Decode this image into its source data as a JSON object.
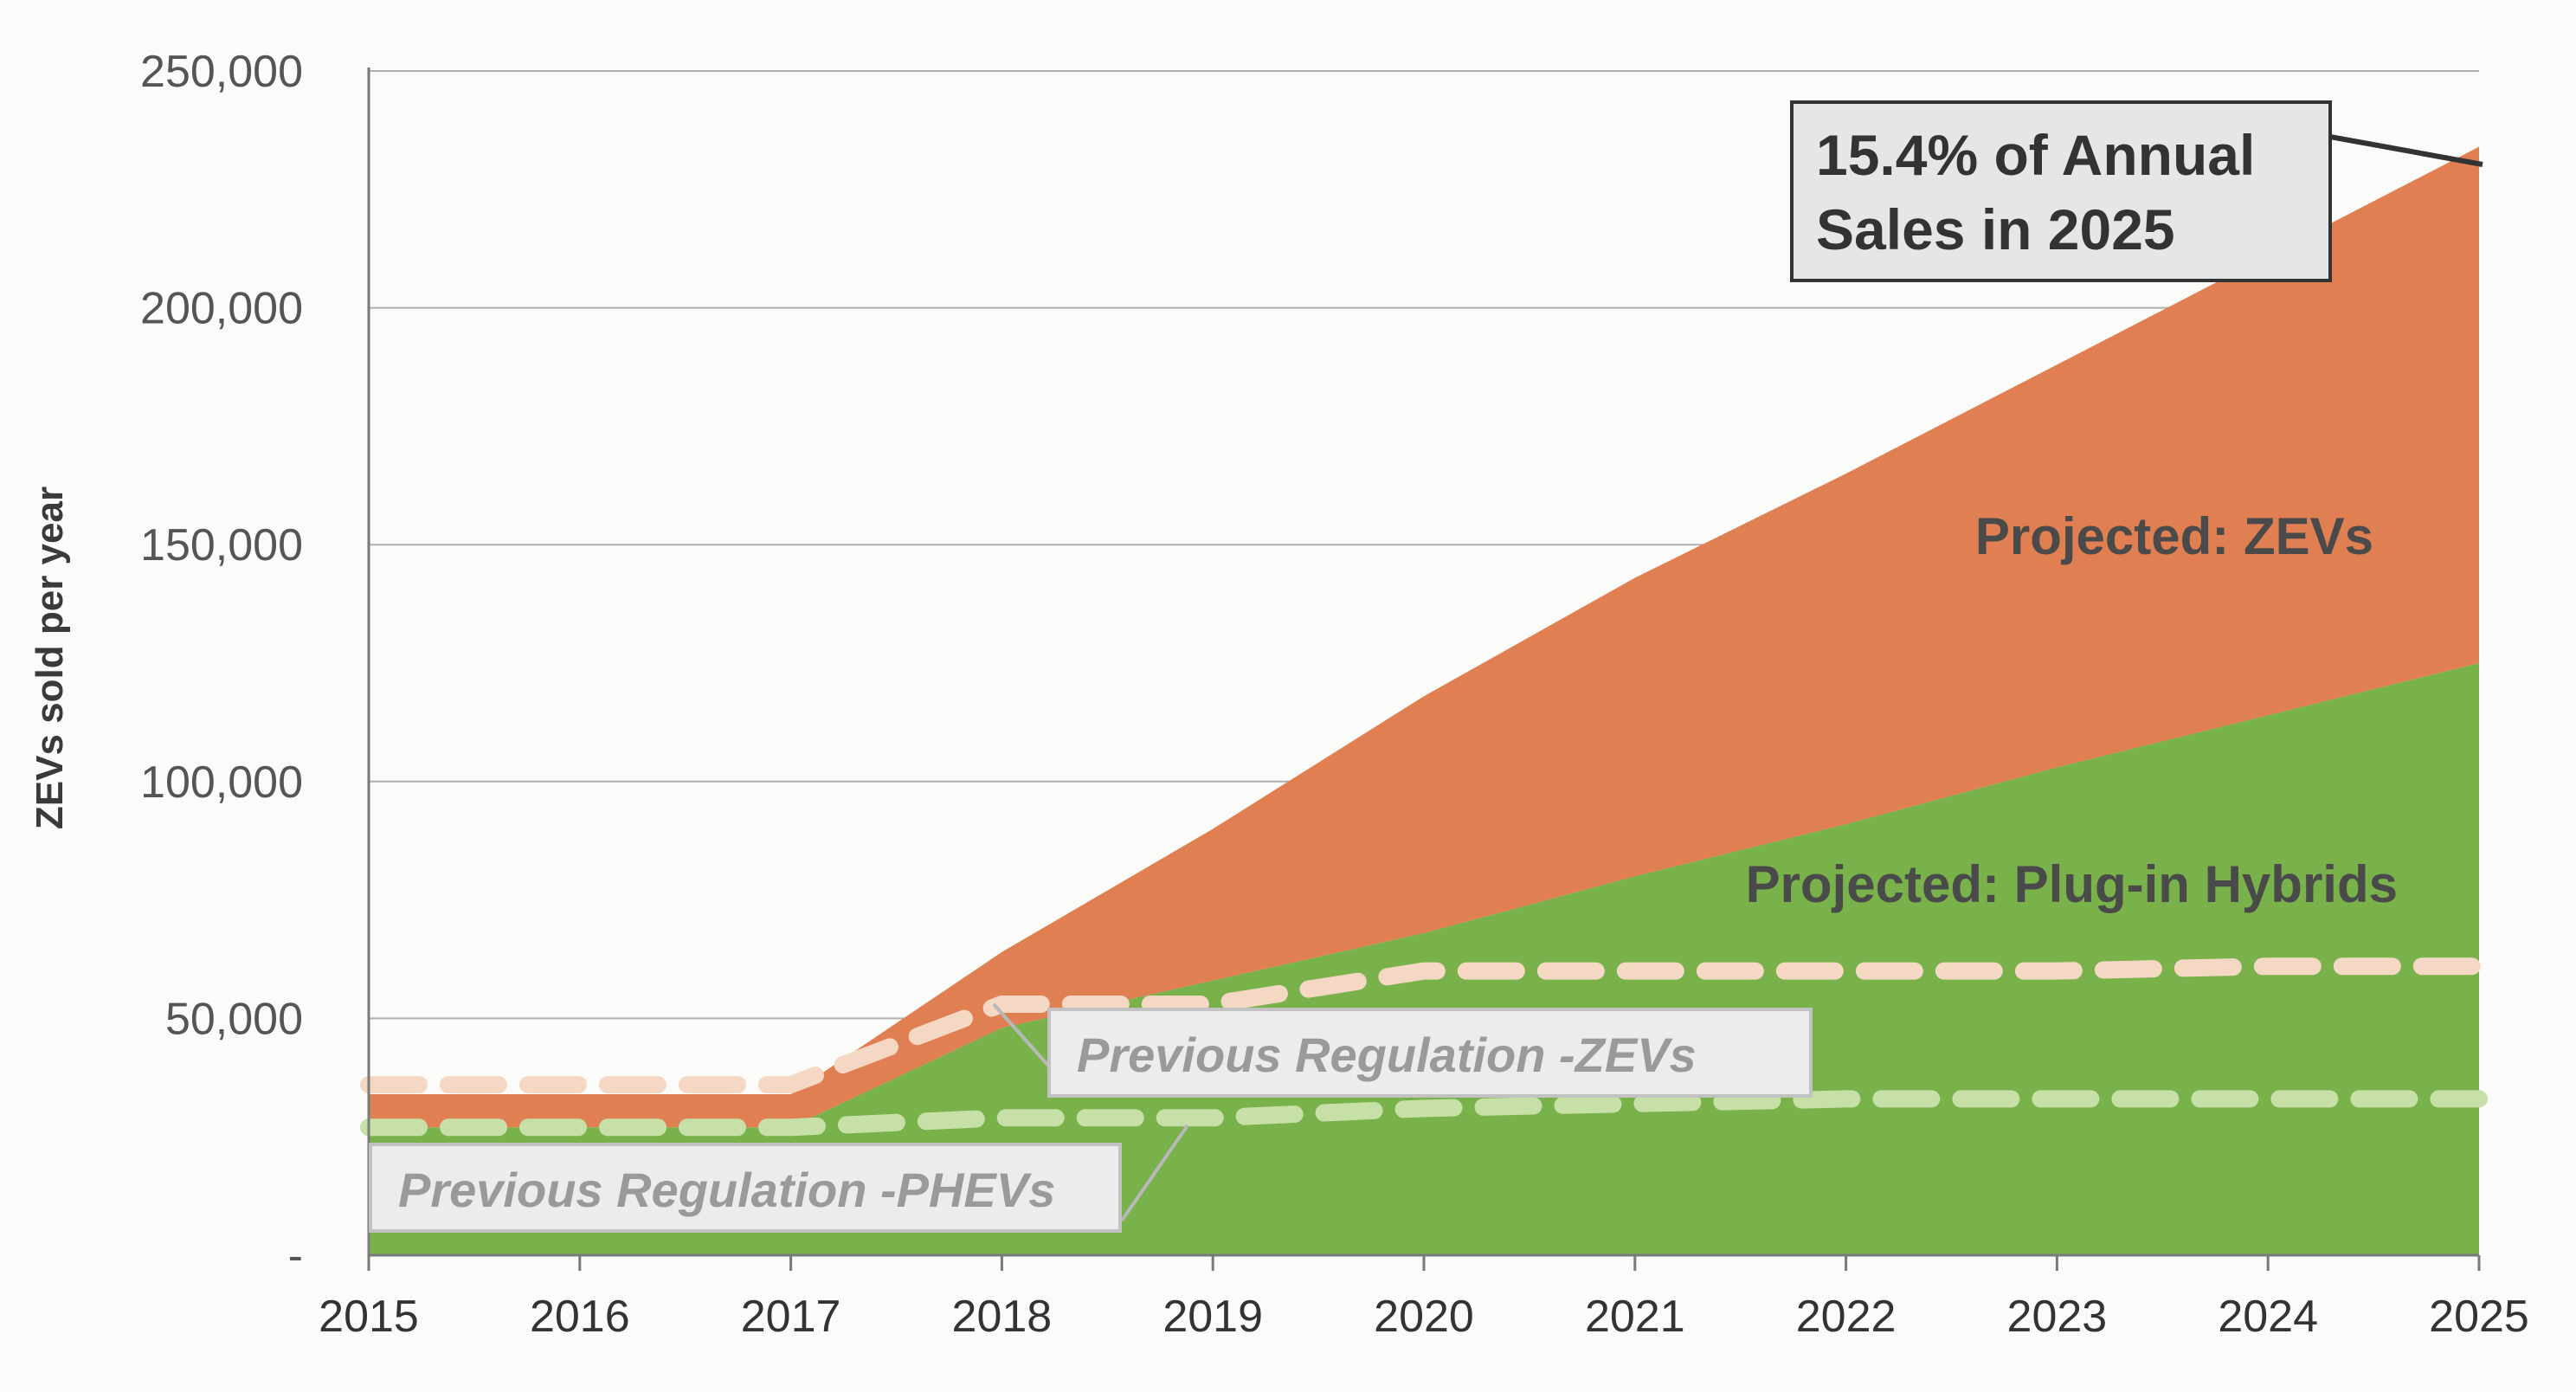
{
  "chart_data": {
    "type": "area",
    "ylabel": "ZEVs sold per year",
    "xlabel": "",
    "x": [
      2015,
      2016,
      2017,
      2018,
      2019,
      2020,
      2021,
      2022,
      2023,
      2024,
      2025
    ],
    "x_tick_labels": [
      "2015",
      "2016",
      "2017",
      "2018",
      "2019",
      "2020",
      "2021",
      "2022",
      "2023",
      "2024",
      "2025"
    ],
    "y_ticks": [
      0,
      50000,
      100000,
      150000,
      200000,
      250000
    ],
    "y_tick_labels": [
      "-",
      "50,000",
      "100,000",
      "150,000",
      "200,000",
      "250,000"
    ],
    "ylim": [
      0,
      250000
    ],
    "grid": true,
    "stacked": true,
    "series": [
      {
        "name": "Projected: Plug-in Hybrids",
        "values": [
          27000,
          27000,
          27000,
          48000,
          58000,
          68000,
          80000,
          91000,
          103000,
          114000,
          125000
        ],
        "color": "#79b14a"
      },
      {
        "name": "Projected: ZEVs",
        "values": [
          7000,
          7000,
          7000,
          16000,
          32000,
          50000,
          63000,
          74000,
          85000,
          97000,
          109000
        ],
        "color": "#e07f52"
      }
    ],
    "reference_lines": [
      {
        "name": "Previous Regulation -ZEVs",
        "values": [
          36000,
          36000,
          36000,
          53000,
          53000,
          60000,
          60000,
          60000,
          60000,
          61000,
          61000
        ],
        "color": "#f5d8c4"
      },
      {
        "name": "Previous Regulation -PHEVs",
        "values": [
          27000,
          27000,
          27000,
          29000,
          29000,
          31000,
          32000,
          33000,
          33000,
          33000,
          33000
        ],
        "color": "#c6e0a8"
      }
    ],
    "annotations": {
      "callout_line1": "15.4% of Annual",
      "callout_line2": "Sales in 2025",
      "zev_area_label": "Projected: ZEVs",
      "phev_area_label": "Projected: Plug-in Hybrids",
      "prev_zev_label": "Previous Regulation -ZEVs",
      "prev_phev_label": "Previous Regulation -PHEVs"
    }
  }
}
